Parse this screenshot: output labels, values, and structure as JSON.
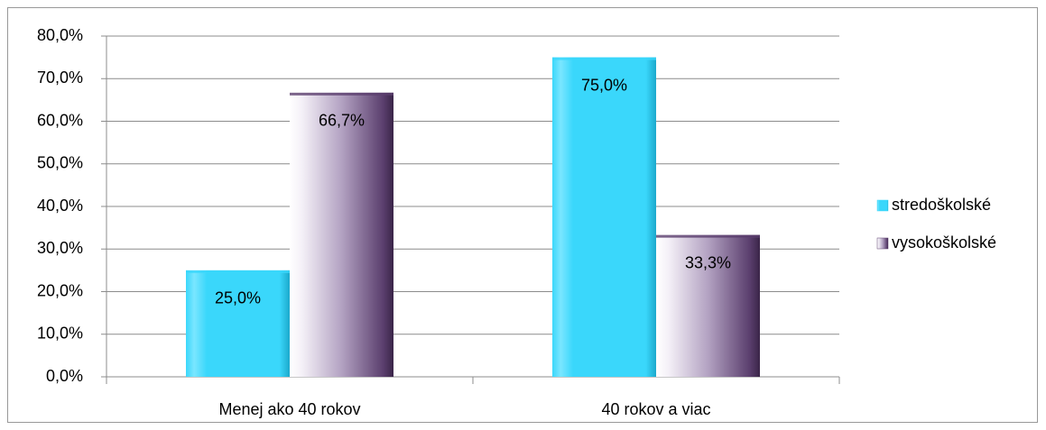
{
  "chart_data": {
    "type": "bar",
    "categories": [
      "Menej ako 40 rokov",
      "40 rokov a viac"
    ],
    "series": [
      {
        "name": "stredoškolské",
        "color": "#3ad7fb",
        "values": [
          25.0,
          75.0
        ],
        "value_labels": [
          "25,0%",
          "75,0%"
        ]
      },
      {
        "name": "vysokoškolské",
        "color": "#5b3f6e",
        "values": [
          66.7,
          33.3
        ],
        "value_labels": [
          "66,7%",
          "33,3%"
        ]
      }
    ],
    "ylim": [
      0,
      80
    ],
    "yticks": [
      {
        "value": 0,
        "label": "0,0%"
      },
      {
        "value": 10,
        "label": "10,0%"
      },
      {
        "value": 20,
        "label": "20,0%"
      },
      {
        "value": 30,
        "label": "30,0%"
      },
      {
        "value": 40,
        "label": "40,0%"
      },
      {
        "value": 50,
        "label": "50,0%"
      },
      {
        "value": 60,
        "label": "60,0%"
      },
      {
        "value": 70,
        "label": "70,0%"
      },
      {
        "value": 80,
        "label": "80,0%"
      }
    ],
    "grid": true,
    "legend": "right"
  }
}
